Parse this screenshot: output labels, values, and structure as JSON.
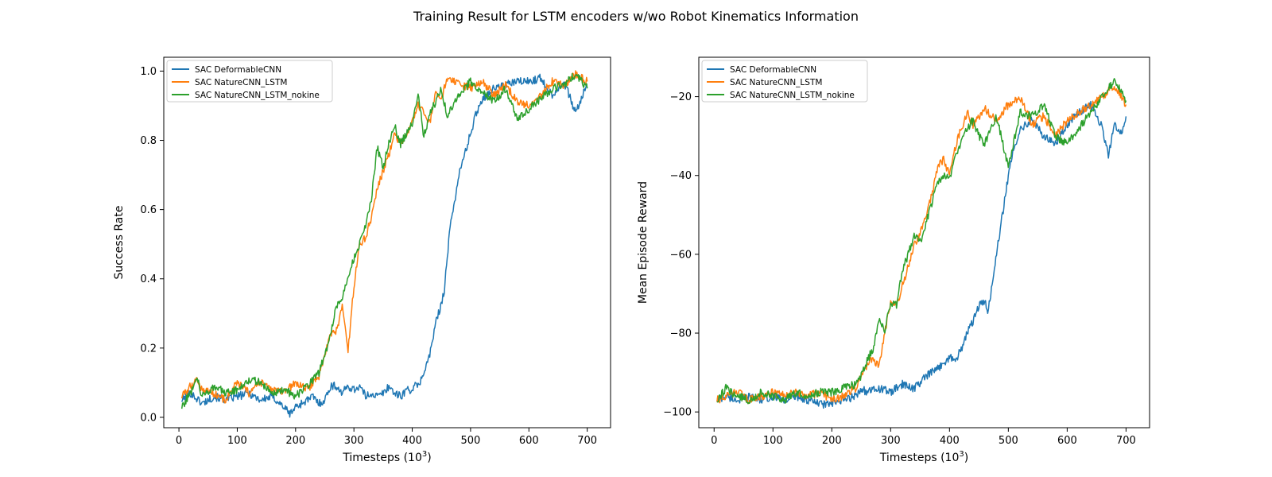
{
  "figure": {
    "title": "Training Result for LSTM encoders w/wo Robot Kinematics Information"
  },
  "colors": {
    "SAC DeformableCNN": "#1f77b4",
    "SAC NatureCNN_LSTM": "#ff7f0e",
    "SAC NatureCNN_LSTM_nokine": "#2ca02c"
  },
  "chart_data": [
    {
      "type": "line",
      "title": "",
      "xlabel_main": "Timesteps (10",
      "xlabel_sup": "3",
      "xlabel_end": ")",
      "ylabel": "Success Rate",
      "xlim": [
        -26,
        740
      ],
      "ylim": [
        -0.03,
        1.04
      ],
      "xticks": [
        0,
        100,
        200,
        300,
        400,
        500,
        600,
        700
      ],
      "yticks": [
        0.0,
        0.2,
        0.4,
        0.6,
        0.8,
        1.0
      ],
      "ytick_labels": [
        "0.0",
        "0.2",
        "0.4",
        "0.6",
        "0.8",
        "1.0"
      ],
      "legend_position": "upper-left",
      "series": [
        {
          "name": "SAC DeformableCNN",
          "x": [
            5,
            20,
            40,
            60,
            80,
            100,
            120,
            140,
            160,
            180,
            190,
            200,
            210,
            220,
            230,
            240,
            250,
            260,
            270,
            280,
            290,
            300,
            310,
            320,
            330,
            340,
            350,
            360,
            370,
            380,
            390,
            400,
            405,
            410,
            420,
            430,
            440,
            450,
            455,
            460,
            465,
            470,
            480,
            490,
            500,
            510,
            520,
            540,
            560,
            580,
            600,
            620,
            640,
            660,
            680,
            690,
            700
          ],
          "y": [
            0.05,
            0.07,
            0.04,
            0.06,
            0.05,
            0.06,
            0.07,
            0.05,
            0.06,
            0.03,
            0.01,
            0.03,
            0.04,
            0.05,
            0.06,
            0.04,
            0.05,
            0.09,
            0.09,
            0.07,
            0.09,
            0.08,
            0.09,
            0.06,
            0.07,
            0.06,
            0.07,
            0.09,
            0.07,
            0.06,
            0.08,
            0.08,
            0.09,
            0.09,
            0.13,
            0.18,
            0.27,
            0.33,
            0.37,
            0.46,
            0.55,
            0.6,
            0.7,
            0.76,
            0.82,
            0.88,
            0.92,
            0.95,
            0.96,
            0.97,
            0.97,
            0.98,
            0.93,
            0.97,
            0.88,
            0.92,
            0.96
          ]
        },
        {
          "name": "SAC NatureCNN_LSTM",
          "x": [
            5,
            20,
            30,
            40,
            60,
            80,
            100,
            120,
            140,
            160,
            180,
            200,
            220,
            240,
            250,
            260,
            270,
            280,
            285,
            290,
            300,
            310,
            320,
            330,
            340,
            350,
            360,
            370,
            380,
            390,
            400,
            410,
            420,
            430,
            440,
            450,
            460,
            480,
            500,
            520,
            540,
            560,
            580,
            600,
            620,
            640,
            660,
            680,
            700
          ],
          "y": [
            0.06,
            0.09,
            0.11,
            0.08,
            0.07,
            0.05,
            0.1,
            0.07,
            0.1,
            0.08,
            0.07,
            0.1,
            0.08,
            0.12,
            0.18,
            0.24,
            0.25,
            0.32,
            0.26,
            0.19,
            0.38,
            0.5,
            0.52,
            0.58,
            0.66,
            0.71,
            0.76,
            0.82,
            0.79,
            0.81,
            0.85,
            0.9,
            0.88,
            0.85,
            0.93,
            0.92,
            0.98,
            0.96,
            0.95,
            0.97,
            0.93,
            0.96,
            0.91,
            0.9,
            0.93,
            0.97,
            0.96,
            0.99,
            0.97
          ]
        },
        {
          "name": "SAC NatureCNN_LSTM_nokine",
          "x": [
            5,
            20,
            30,
            40,
            60,
            80,
            100,
            120,
            140,
            160,
            180,
            200,
            220,
            240,
            250,
            260,
            270,
            280,
            290,
            300,
            310,
            320,
            330,
            340,
            350,
            360,
            370,
            380,
            390,
            400,
            410,
            420,
            430,
            440,
            450,
            460,
            470,
            480,
            500,
            520,
            540,
            560,
            580,
            600,
            620,
            640,
            660,
            680,
            700
          ],
          "y": [
            0.03,
            0.07,
            0.12,
            0.06,
            0.09,
            0.07,
            0.08,
            0.11,
            0.1,
            0.07,
            0.08,
            0.06,
            0.09,
            0.13,
            0.18,
            0.24,
            0.32,
            0.35,
            0.4,
            0.46,
            0.5,
            0.55,
            0.63,
            0.78,
            0.72,
            0.79,
            0.84,
            0.79,
            0.82,
            0.85,
            0.93,
            0.81,
            0.88,
            0.91,
            0.95,
            0.87,
            0.9,
            0.93,
            0.97,
            0.94,
            0.91,
            0.95,
            0.86,
            0.89,
            0.92,
            0.95,
            0.96,
            0.99,
            0.95
          ]
        }
      ]
    },
    {
      "type": "line",
      "title": "",
      "xlabel_main": "Timesteps (10",
      "xlabel_sup": "3",
      "xlabel_end": ")",
      "ylabel": "Mean Episode Reward",
      "xlim": [
        -26,
        740
      ],
      "ylim": [
        -104,
        -10
      ],
      "xticks": [
        0,
        100,
        200,
        300,
        400,
        500,
        600,
        700
      ],
      "yticks": [
        -100,
        -80,
        -60,
        -40,
        -20
      ],
      "ytick_labels": [
        "−100",
        "−80",
        "−60",
        "−40",
        "−20"
      ],
      "legend_position": "upper-left",
      "series": [
        {
          "name": "SAC DeformableCNN",
          "x": [
            5,
            20,
            40,
            60,
            80,
            100,
            120,
            140,
            160,
            180,
            200,
            220,
            240,
            250,
            260,
            280,
            300,
            320,
            340,
            360,
            380,
            400,
            410,
            420,
            430,
            440,
            450,
            460,
            465,
            470,
            480,
            490,
            500,
            510,
            520,
            540,
            560,
            580,
            600,
            620,
            640,
            660,
            670,
            680,
            690,
            700
          ],
          "y": [
            -97,
            -96,
            -97,
            -96,
            -97,
            -96,
            -97,
            -96,
            -97,
            -98,
            -98,
            -97,
            -96,
            -94,
            -95,
            -94,
            -95,
            -93,
            -94,
            -91,
            -89,
            -86,
            -87,
            -84,
            -80,
            -77,
            -73,
            -72,
            -75,
            -70,
            -60,
            -50,
            -40,
            -33,
            -28,
            -26,
            -30,
            -32,
            -27,
            -24,
            -22,
            -28,
            -35,
            -27,
            -30,
            -25
          ]
        },
        {
          "name": "SAC NatureCNN_LSTM",
          "x": [
            5,
            20,
            40,
            60,
            80,
            100,
            120,
            140,
            160,
            180,
            200,
            220,
            240,
            250,
            260,
            270,
            280,
            290,
            300,
            310,
            320,
            330,
            340,
            350,
            360,
            370,
            380,
            390,
            400,
            410,
            420,
            430,
            440,
            450,
            460,
            480,
            500,
            520,
            540,
            560,
            580,
            600,
            620,
            640,
            660,
            680,
            700
          ],
          "y": [
            -97,
            -96,
            -95,
            -97,
            -96,
            -95,
            -96,
            -95,
            -96,
            -95,
            -97,
            -96,
            -94,
            -91,
            -88,
            -86,
            -89,
            -80,
            -72,
            -73,
            -68,
            -63,
            -58,
            -55,
            -50,
            -45,
            -38,
            -36,
            -40,
            -33,
            -28,
            -24,
            -27,
            -25,
            -23,
            -26,
            -22,
            -20,
            -27,
            -25,
            -30,
            -26,
            -24,
            -22,
            -20,
            -17,
            -22
          ]
        },
        {
          "name": "SAC NatureCNN_LSTM_nokine",
          "x": [
            5,
            20,
            40,
            60,
            80,
            100,
            120,
            140,
            160,
            180,
            200,
            220,
            240,
            250,
            260,
            270,
            280,
            290,
            300,
            310,
            320,
            330,
            340,
            350,
            360,
            370,
            380,
            390,
            400,
            410,
            420,
            430,
            440,
            450,
            460,
            480,
            500,
            520,
            540,
            560,
            580,
            600,
            620,
            640,
            660,
            680,
            700
          ],
          "y": [
            -97,
            -94,
            -96,
            -97,
            -95,
            -96,
            -97,
            -95,
            -96,
            -95,
            -95,
            -94,
            -93,
            -91,
            -87,
            -84,
            -77,
            -79,
            -72,
            -73,
            -64,
            -60,
            -55,
            -57,
            -52,
            -47,
            -42,
            -40,
            -41,
            -35,
            -32,
            -28,
            -26,
            -30,
            -32,
            -25,
            -38,
            -24,
            -25,
            -22,
            -30,
            -32,
            -28,
            -24,
            -20,
            -16,
            -21
          ]
        }
      ]
    }
  ]
}
